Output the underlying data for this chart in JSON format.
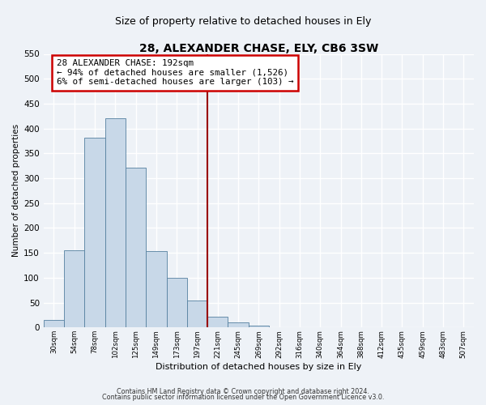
{
  "title": "28, ALEXANDER CHASE, ELY, CB6 3SW",
  "subtitle": "Size of property relative to detached houses in Ely",
  "xlabel": "Distribution of detached houses by size in Ely",
  "ylabel": "Number of detached properties",
  "bin_labels": [
    "30sqm",
    "54sqm",
    "78sqm",
    "102sqm",
    "125sqm",
    "149sqm",
    "173sqm",
    "197sqm",
    "221sqm",
    "245sqm",
    "269sqm",
    "292sqm",
    "316sqm",
    "340sqm",
    "364sqm",
    "388sqm",
    "412sqm",
    "435sqm",
    "459sqm",
    "483sqm",
    "507sqm"
  ],
  "bar_heights": [
    15,
    155,
    382,
    420,
    322,
    153,
    100,
    55,
    22,
    10,
    3,
    1,
    1,
    0,
    0,
    0,
    0,
    0,
    0,
    0,
    0
  ],
  "bar_color": "#c8d8e8",
  "bar_edge_color": "#5580a0",
  "vline_bin_index": 7,
  "vline_color": "#990000",
  "annotation_text": "28 ALEXANDER CHASE: 192sqm\n← 94% of detached houses are smaller (1,526)\n6% of semi-detached houses are larger (103) →",
  "annotation_box_color": "#ffffff",
  "annotation_box_edge": "#cc0000",
  "ylim": [
    0,
    550
  ],
  "yticks": [
    0,
    50,
    100,
    150,
    200,
    250,
    300,
    350,
    400,
    450,
    500,
    550
  ],
  "footer_line1": "Contains HM Land Registry data © Crown copyright and database right 2024.",
  "footer_line2": "Contains public sector information licensed under the Open Government Licence v3.0.",
  "background_color": "#eef2f7",
  "grid_color": "#ffffff",
  "title_fontsize": 10,
  "subtitle_fontsize": 9
}
